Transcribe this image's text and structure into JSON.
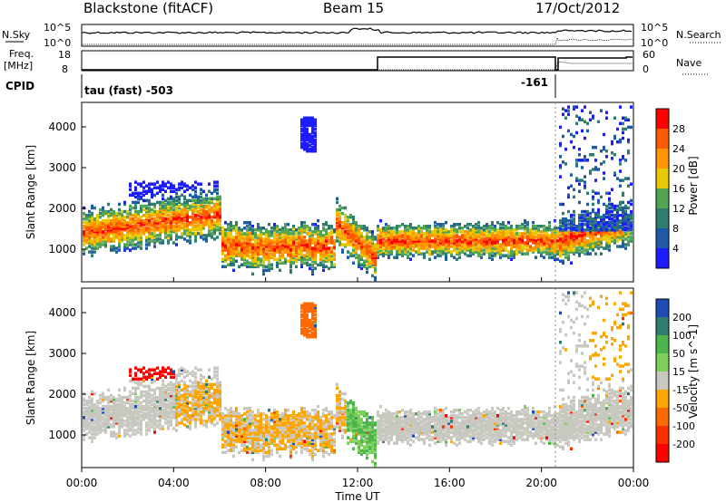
{
  "header": {
    "station": "Blackstone (fitACF)",
    "beam": "Beam 15",
    "date": "17/Oct/2012"
  },
  "top_panels": {
    "nsky_label": "N.Sky",
    "nsky_ticks": [
      "10^5",
      "10^0"
    ],
    "nsearch_label": "N.Search",
    "nsearch_ticks": [
      "10^5",
      "10^0"
    ],
    "freq_label_1": "Freq.",
    "freq_label_2": "[MHz]",
    "freq_ticks": [
      "18",
      "8"
    ],
    "nave_label": "Nave",
    "nave_ticks": [
      "60",
      "0"
    ],
    "cpid_label": "CPID",
    "cpid_text_1": "tau (fast) -503",
    "cpid_text_2": "-161"
  },
  "chart_data": [
    {
      "type": "heatmap",
      "panel": "power",
      "ylabel": "Slant Range [km]",
      "ylim": [
        200,
        4600
      ],
      "yticks": [
        "4000",
        "3000",
        "2000",
        "1000"
      ],
      "colorbar_label": "Power [dB]",
      "colorbar_ticks": [
        "28",
        "24",
        "20",
        "16",
        "12",
        "8",
        "4"
      ],
      "colors": [
        "#ff0000",
        "#ff5a00",
        "#ff9600",
        "#e8c800",
        "#52a552",
        "#2e7d6e",
        "#1f5aa6",
        "#1c1cff"
      ]
    },
    {
      "type": "heatmap",
      "panel": "velocity",
      "ylabel": "Slant Range [km]",
      "ylim": [
        200,
        4600
      ],
      "yticks": [
        "4000",
        "3000",
        "2000",
        "1000"
      ],
      "colorbar_label": "Velocity [m s^-1]",
      "colorbar_ticks": [
        "200",
        "100",
        "50",
        "15",
        "-15",
        "-50",
        "-100",
        "-200"
      ],
      "colors": [
        "#1e4cb4",
        "#2e7d6e",
        "#4cb64c",
        "#7cd05a",
        "#c8c8c0",
        "#ffa500",
        "#ff6a00",
        "#ff3000",
        "#ff0000"
      ]
    }
  ],
  "xaxis": {
    "label": "Time UT",
    "ticks": [
      "00:00",
      "04:00",
      "08:00",
      "12:00",
      "16:00",
      "20:00",
      "00:00"
    ]
  }
}
